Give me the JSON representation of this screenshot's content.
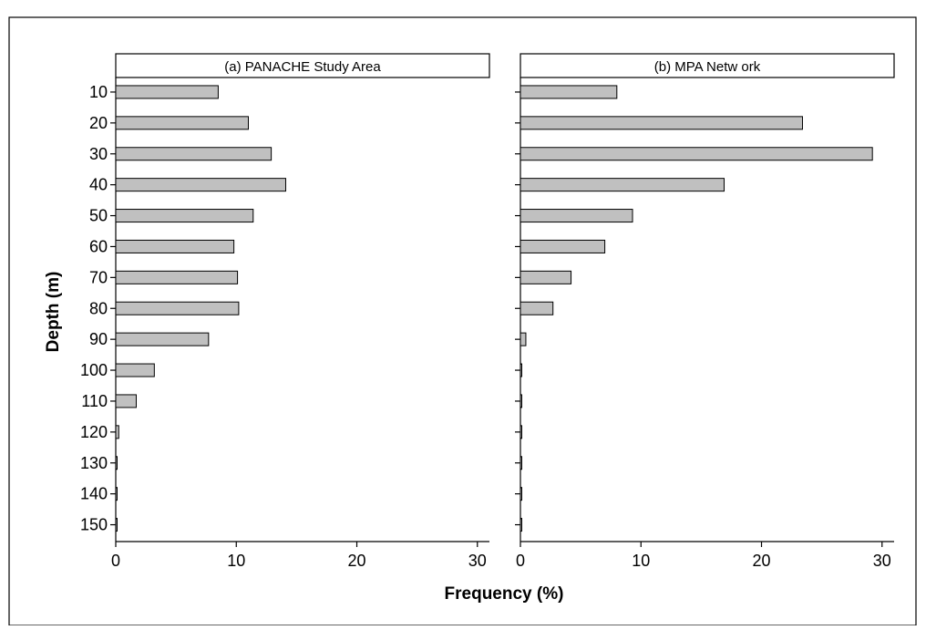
{
  "chart_data": {
    "type": "bar",
    "orientation": "horizontal",
    "ylabel": "Depth (m)",
    "xlabel": "Frequency (%)",
    "categories": [
      "10",
      "20",
      "30",
      "40",
      "50",
      "60",
      "70",
      "80",
      "90",
      "100",
      "110",
      "120",
      "130",
      "140",
      "150"
    ],
    "xlim": [
      0,
      31
    ],
    "xticks": [
      "0",
      "10",
      "20",
      "30"
    ],
    "colors": {
      "bar_fill": "#c0c0c0",
      "bar_stroke": "#000000"
    },
    "panels": [
      {
        "title": "(a) PANACHE Study Area",
        "values": [
          8.5,
          11.0,
          12.9,
          14.1,
          11.4,
          9.8,
          10.1,
          10.2,
          7.7,
          3.2,
          1.7,
          0.25,
          0.1,
          0.1,
          0.1
        ]
      },
      {
        "title": "(b) MPA Netw ork",
        "values": [
          8.0,
          23.4,
          29.2,
          16.9,
          9.3,
          7.0,
          4.2,
          2.7,
          0.45,
          0.1,
          0.1,
          0.1,
          0.1,
          0.1,
          0.1
        ]
      }
    ]
  }
}
